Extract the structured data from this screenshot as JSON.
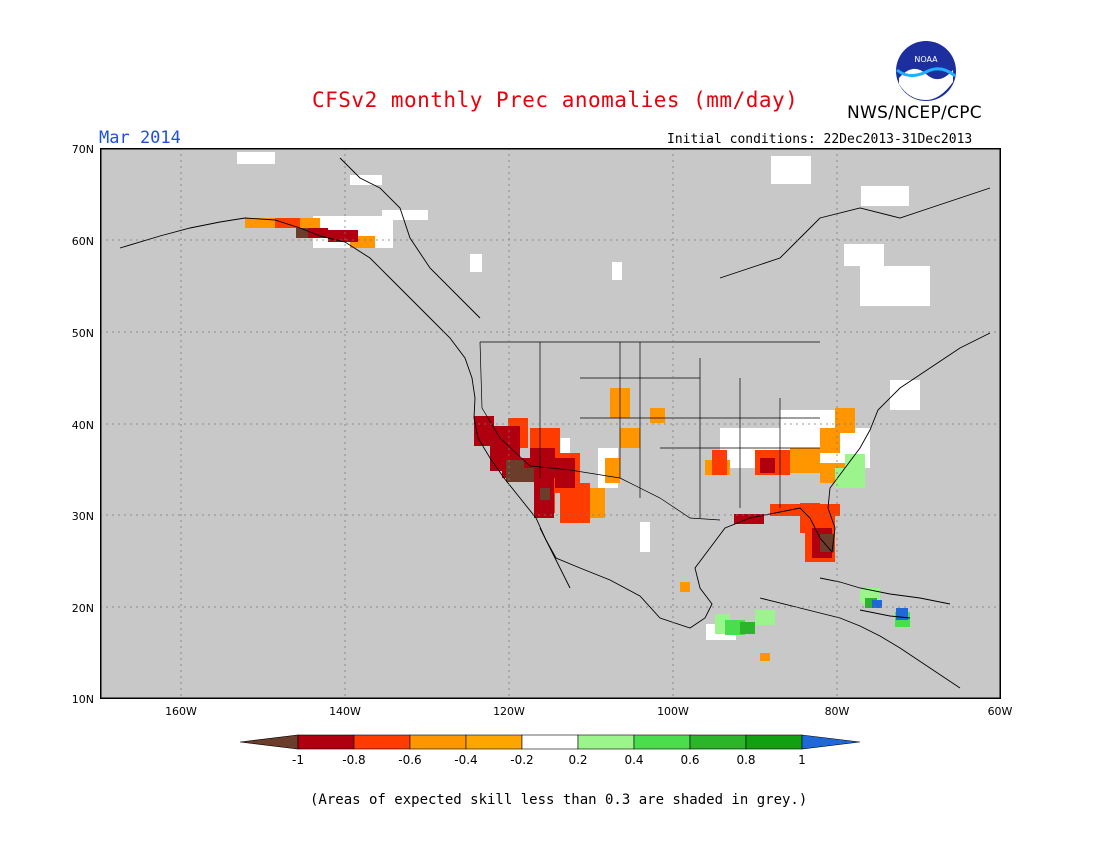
{
  "header": {
    "title": "CFSv2 monthly Prec anomalies (mm/day)",
    "month": "Mar 2014",
    "initial_conditions": "Initial conditions: 22Dec2013-31Dec2013",
    "org": "NWS/NCEP/CPC",
    "logo_text": "NOAA"
  },
  "axes": {
    "y_ticks": [
      "70N",
      "60N",
      "50N",
      "40N",
      "30N",
      "20N",
      "10N"
    ],
    "x_ticks": [
      "160W",
      "140W",
      "120W",
      "100W",
      "80W",
      "60W"
    ]
  },
  "colorbar": {
    "labels": [
      "-1",
      "-0.8",
      "-0.6",
      "-0.4",
      "-0.2",
      "0.2",
      "0.4",
      "0.6",
      "0.8",
      "1"
    ],
    "colors": [
      "#6b3d2a",
      "#b00010",
      "#ff3c00",
      "#ff9600",
      "#ffffff",
      "#9bf58c",
      "#4ade4f",
      "#2bb52b",
      "#11a011",
      "#1f68d8"
    ]
  },
  "footnote": "(Areas of expected skill less than 0.3 are shaded in grey.)",
  "colors": {
    "grey": "#c8c8c8",
    "title": "#e8000b",
    "month": "#1f4fe0"
  }
}
